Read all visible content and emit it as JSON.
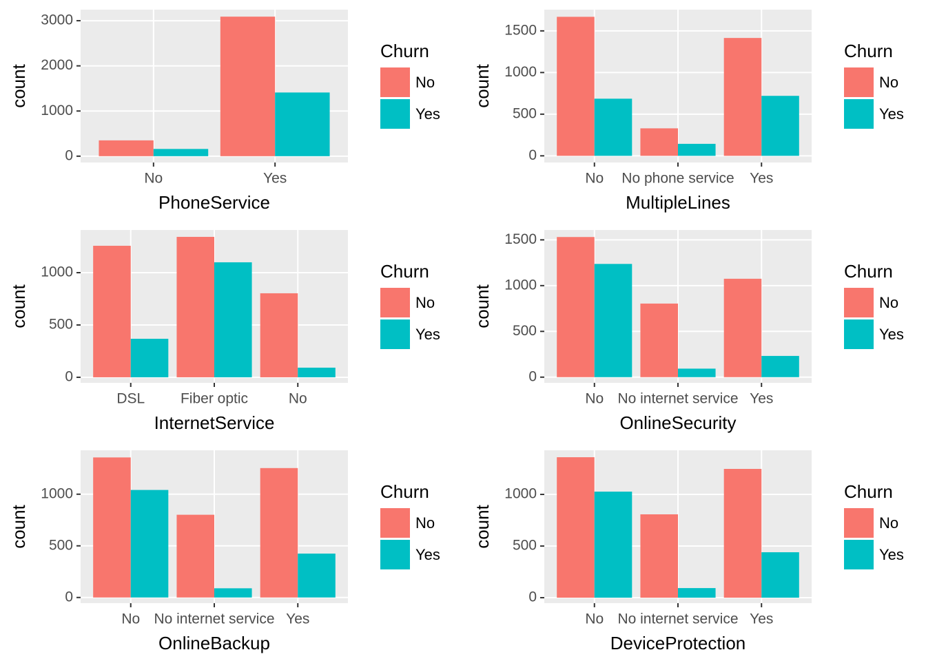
{
  "chart_data": [
    {
      "type": "bar",
      "x_label": "PhoneService",
      "y_label": "count",
      "legend_title": "Churn",
      "grid": true,
      "categories": [
        "No",
        "Yes"
      ],
      "series": [
        {
          "name": "No",
          "color": "#F8766D",
          "values": [
            350,
            3090
          ]
        },
        {
          "name": "Yes",
          "color": "#00BFC4",
          "values": [
            160,
            1410
          ]
        }
      ],
      "ylim": [
        -140,
        3245
      ],
      "yticks": [
        0,
        1000,
        2000,
        3000
      ]
    },
    {
      "type": "bar",
      "x_label": "MultipleLines",
      "y_label": "count",
      "legend_title": "Churn",
      "grid": true,
      "categories": [
        "No",
        "No phone service",
        "Yes"
      ],
      "series": [
        {
          "name": "No",
          "color": "#F8766D",
          "values": [
            1669,
            330,
            1415
          ]
        },
        {
          "name": "Yes",
          "color": "#00BFC4",
          "values": [
            686,
            144,
            720
          ]
        }
      ],
      "ylim": [
        -80,
        1755
      ],
      "yticks": [
        0,
        500,
        1000,
        1500
      ]
    },
    {
      "type": "bar",
      "x_label": "InternetService",
      "y_label": "count",
      "legend_title": "Churn",
      "grid": true,
      "categories": [
        "DSL",
        "Fiber optic",
        "No"
      ],
      "series": [
        {
          "name": "No",
          "color": "#F8766D",
          "values": [
            1257,
            1342,
            803
          ]
        },
        {
          "name": "Yes",
          "color": "#00BFC4",
          "values": [
            368,
            1099,
            92
          ]
        }
      ],
      "ylim": [
        -53,
        1408
      ],
      "yticks": [
        0,
        500,
        1000
      ]
    },
    {
      "type": "bar",
      "x_label": "OnlineSecurity",
      "y_label": "count",
      "legend_title": "Churn",
      "grid": true,
      "categories": [
        "No",
        "No internet service",
        "Yes"
      ],
      "series": [
        {
          "name": "No",
          "color": "#F8766D",
          "values": [
            1531,
            804,
            1075
          ]
        },
        {
          "name": "Yes",
          "color": "#00BFC4",
          "values": [
            1237,
            93,
            232
          ]
        }
      ],
      "ylim": [
        -62,
        1608
      ],
      "yticks": [
        0,
        500,
        1000,
        1500
      ]
    },
    {
      "type": "bar",
      "x_label": "OnlineBackup",
      "y_label": "count",
      "legend_title": "Churn",
      "grid": true,
      "categories": [
        "No",
        "No internet service",
        "Yes"
      ],
      "series": [
        {
          "name": "No",
          "color": "#F8766D",
          "values": [
            1356,
            801,
            1253
          ]
        },
        {
          "name": "Yes",
          "color": "#00BFC4",
          "values": [
            1041,
            89,
            425
          ]
        }
      ],
      "ylim": [
        -55,
        1425
      ],
      "yticks": [
        0,
        500,
        1000
      ]
    },
    {
      "type": "bar",
      "x_label": "DeviceProtection",
      "y_label": "count",
      "legend_title": "Churn",
      "grid": true,
      "categories": [
        "No",
        "No internet service",
        "Yes"
      ],
      "series": [
        {
          "name": "No",
          "color": "#F8766D",
          "values": [
            1360,
            807,
            1247
          ]
        },
        {
          "name": "Yes",
          "color": "#00BFC4",
          "values": [
            1027,
            93,
            440
          ]
        }
      ],
      "ylim": [
        -53,
        1427
      ],
      "yticks": [
        0,
        500,
        1000
      ]
    }
  ]
}
